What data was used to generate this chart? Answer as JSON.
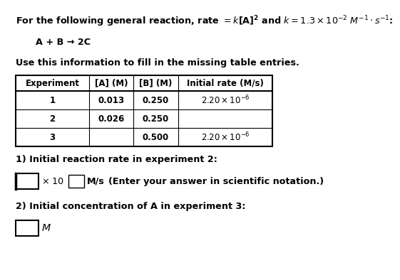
{
  "title": "For the following general reaction, rate = $k$[A]$^2$ and $k$ = 1.3 × 10$^{-2}$ $M^{-1}$ · $s^{-1}$:",
  "reaction": "A + B → 2C",
  "subtitle": "Use this information to fill in the missing table entries.",
  "col_headers": [
    "Experiment",
    "[A] (\\textit{M})",
    "[B] (\\textit{M})",
    "Initial rate (\\textit{M}/s)"
  ],
  "table_rows": [
    [
      "1",
      "0.013",
      "0.250",
      "2.20 × 10$^{-6}$"
    ],
    [
      "2",
      "0.026",
      "0.250",
      ""
    ],
    [
      "3",
      "",
      "0.500",
      "2.20 × 10$^{-6}$"
    ]
  ],
  "q1_text": "1) Initial reaction rate in experiment 2:",
  "q1_unit": "M/s",
  "q1_note": "(Enter your answer in scientific notation.)",
  "q2_text": "2) Initial concentration of A in experiment 3:",
  "q2_unit": "M",
  "bg_color": "#ffffff",
  "text_color": "#000000",
  "fs": 9.2,
  "fs_small": 8.5
}
